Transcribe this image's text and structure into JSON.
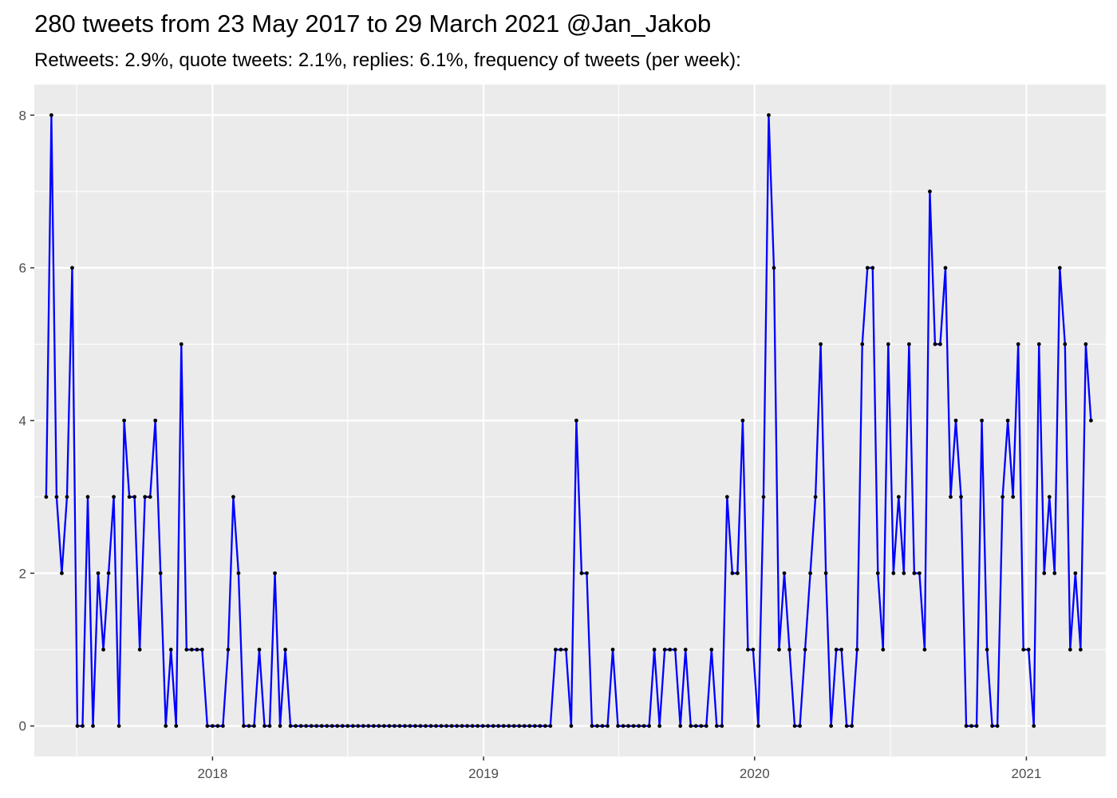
{
  "chart_data": {
    "type": "line",
    "title": "280 tweets from 23 May 2017 to 29 March 2021 @Jan_Jakob",
    "subtitle": "Retweets: 2.9%, quote tweets: 2.1%, replies: 6.1%, frequency of tweets (per week):",
    "xlabel": "",
    "ylabel": "",
    "x_axis": {
      "type": "date",
      "range": [
        "2017-05-06",
        "2021-04-18"
      ],
      "tick_labels": [
        "2018",
        "2019",
        "2020",
        "2021"
      ]
    },
    "y_axis": {
      "range": [
        -0.4,
        8.4
      ],
      "tick_labels": [
        "0",
        "2",
        "4",
        "6",
        "8"
      ]
    },
    "grid": true,
    "legend": "none",
    "colors": {
      "panel": "#EBEBEB",
      "grid": "#FFFFFF",
      "line": "#0000FF",
      "point": "#000000"
    },
    "series": [
      {
        "start_week": "2017-05-22",
        "interval": "week",
        "values": [
          3,
          8,
          3,
          2,
          3,
          6,
          0,
          0,
          3,
          0,
          2,
          1,
          2,
          3,
          0,
          4,
          3,
          3,
          1,
          3,
          3,
          4,
          2,
          0,
          1,
          0,
          5,
          1,
          1,
          1,
          1,
          0,
          0,
          0,
          0,
          1,
          3,
          2,
          0,
          0,
          0,
          1,
          0,
          0,
          2,
          0,
          1,
          0,
          0,
          0,
          0,
          0,
          0,
          0,
          0,
          0,
          0,
          0,
          0,
          0,
          0,
          0,
          0,
          0,
          0,
          0,
          0,
          0,
          0,
          0,
          0,
          0,
          0,
          0,
          0,
          0,
          0,
          0,
          0,
          0,
          0,
          0,
          0,
          0,
          0,
          0,
          0,
          0,
          0,
          0,
          0,
          0,
          0,
          0,
          0,
          0,
          0,
          0,
          1,
          1,
          1,
          0,
          4,
          2,
          2,
          0,
          0,
          0,
          0,
          1,
          0,
          0,
          0,
          0,
          0,
          0,
          0,
          1,
          0,
          1,
          1,
          1,
          0,
          1,
          0,
          0,
          0,
          0,
          1,
          0,
          0,
          3,
          2,
          2,
          4,
          1,
          1,
          0,
          3,
          8,
          6,
          1,
          2,
          1,
          0,
          0,
          1,
          2,
          3,
          5,
          2,
          0,
          1,
          1,
          0,
          0,
          1,
          5,
          6,
          6,
          2,
          1,
          5,
          2,
          3,
          2,
          5,
          2,
          2,
          1,
          7,
          5,
          5,
          6,
          3,
          4,
          3,
          0,
          0,
          0,
          4,
          1,
          0,
          0,
          3,
          4,
          3,
          5,
          1,
          1,
          0,
          5,
          2,
          3,
          2,
          6,
          5,
          1,
          2,
          1,
          5,
          4
        ]
      }
    ]
  }
}
